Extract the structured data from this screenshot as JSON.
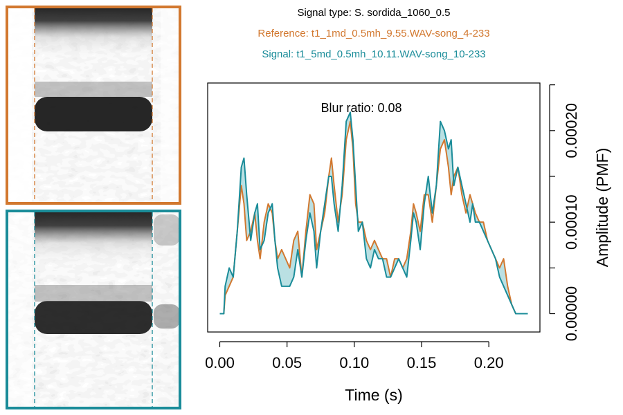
{
  "header": {
    "signal_type": "Signal type: S. sordida_1060_0.5",
    "reference": "Reference: t1_1md_0.5mh_9.55.WAV-song_4-233",
    "signal": "Signal: t1_5md_0.5mh_10.11.WAV-song_10-233"
  },
  "colors": {
    "reference": "#D2782F",
    "signal": "#1A8C99",
    "fill": "#A9D8DC"
  },
  "chart_data": {
    "type": "line",
    "annotation": "Blur ratio: 0.08",
    "xlabel": "Time (s)",
    "ylabel": "Amplitude (PMF)",
    "xlim": [
      -0.009,
      0.238
    ],
    "ylim": [
      -2e-05,
      0.000252
    ],
    "xticks": [
      0.0,
      0.05,
      0.1,
      0.15,
      0.2
    ],
    "xtick_labels": [
      "0.00",
      "0.05",
      "0.10",
      "0.15",
      "0.20"
    ],
    "yticks": [
      0.0,
      5e-05,
      0.0001,
      0.00015,
      0.0002,
      0.00025
    ],
    "ytick_labels": [
      "0.00000",
      "",
      "0.00010",
      "",
      "0.00020",
      ""
    ],
    "x": [
      0.0,
      0.003,
      0.004,
      0.007,
      0.01,
      0.013,
      0.016,
      0.018,
      0.02,
      0.023,
      0.026,
      0.028,
      0.03,
      0.033,
      0.036,
      0.039,
      0.041,
      0.043,
      0.046,
      0.049,
      0.052,
      0.055,
      0.058,
      0.061,
      0.064,
      0.067,
      0.07,
      0.072,
      0.075,
      0.078,
      0.081,
      0.083,
      0.085,
      0.088,
      0.091,
      0.094,
      0.097,
      0.099,
      0.101,
      0.103,
      0.106,
      0.109,
      0.112,
      0.115,
      0.118,
      0.121,
      0.124,
      0.127,
      0.13,
      0.133,
      0.136,
      0.139,
      0.142,
      0.144,
      0.146,
      0.149,
      0.152,
      0.155,
      0.158,
      0.161,
      0.164,
      0.167,
      0.17,
      0.172,
      0.174,
      0.177,
      0.18,
      0.183,
      0.186,
      0.188,
      0.19,
      0.193,
      0.196,
      0.199,
      0.202,
      0.205,
      0.208,
      0.211,
      0.214,
      0.217,
      0.22,
      0.223,
      0.226,
      0.229
    ],
    "series": [
      {
        "name": "Reference",
        "values": [
          0.0,
          0.0,
          2e-05,
          3e-05,
          4e-05,
          9e-05,
          0.00014,
          0.00012,
          8e-05,
          9e-05,
          0.00011,
          8e-05,
          6e-05,
          0.0001,
          0.00012,
          0.00011,
          8e-05,
          6e-05,
          7e-05,
          6e-05,
          5e-05,
          8e-05,
          9e-05,
          4e-05,
          9e-05,
          0.00013,
          0.00012,
          7e-05,
          9e-05,
          0.00011,
          0.00015,
          0.00017,
          0.00014,
          0.0001,
          0.00013,
          0.00019,
          0.00021,
          0.00018,
          0.00012,
          0.0001,
          0.0001,
          8e-05,
          7e-05,
          8e-05,
          7e-05,
          6e-05,
          6e-05,
          4e-05,
          6e-05,
          6e-05,
          5e-05,
          6e-05,
          9e-05,
          0.00012,
          0.00011,
          9e-05,
          0.00013,
          0.00013,
          0.0001,
          0.00014,
          0.00018,
          0.00019,
          0.00016,
          0.00013,
          0.00015,
          0.00016,
          0.00013,
          0.00011,
          0.00013,
          0.00012,
          0.00011,
          0.0001,
          0.0001,
          8e-05,
          7e-05,
          6e-05,
          5e-05,
          6e-05,
          3e-05,
          1e-05,
          0.0,
          0.0,
          0.0,
          0.0
        ]
      },
      {
        "name": "Signal",
        "values": [
          0.0,
          0.0,
          3e-05,
          5e-05,
          4e-05,
          9e-05,
          0.00016,
          0.00017,
          0.00013,
          8e-05,
          0.00011,
          0.00012,
          7e-05,
          8e-05,
          0.00011,
          0.00012,
          8e-05,
          5e-05,
          3e-05,
          3e-05,
          3e-05,
          4e-05,
          7e-05,
          4e-05,
          8e-05,
          0.00011,
          9e-05,
          5e-05,
          9e-05,
          0.00012,
          0.00015,
          0.00015,
          0.00012,
          9e-05,
          0.00014,
          0.00021,
          0.00022,
          0.00019,
          0.00014,
          9e-05,
          0.0001,
          6e-05,
          5e-05,
          7e-05,
          6e-05,
          6e-05,
          4e-05,
          4e-05,
          5e-05,
          6e-05,
          5e-05,
          4e-05,
          8e-05,
          0.00011,
          0.0001,
          7e-05,
          0.00012,
          0.00015,
          0.00011,
          0.00014,
          0.00021,
          0.0002,
          0.00018,
          0.00019,
          0.00014,
          0.00016,
          0.00014,
          0.00012,
          0.0001,
          0.00012,
          0.0001,
          0.0001,
          9e-05,
          8e-05,
          7e-05,
          6e-05,
          4e-05,
          3e-05,
          2e-05,
          1e-05,
          0.0,
          0.0,
          0.0,
          0.0
        ]
      }
    ]
  }
}
